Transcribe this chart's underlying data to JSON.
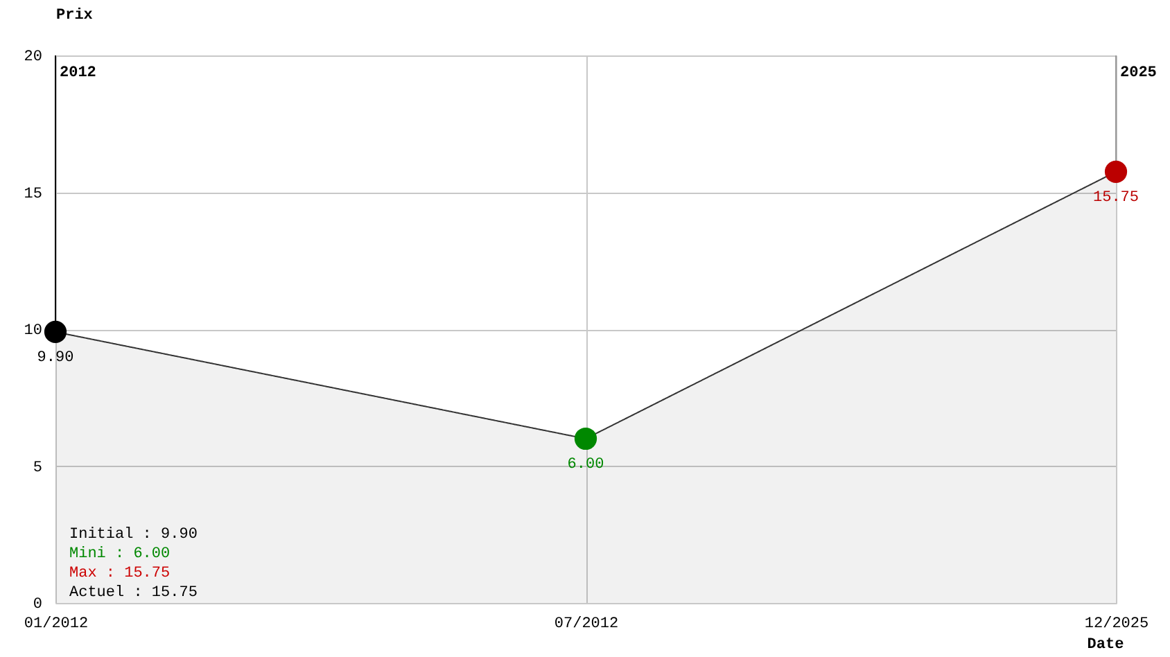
{
  "chart_data": {
    "type": "area",
    "xlabel": "Date",
    "ylabel": "Prix",
    "categories": [
      "01/2012",
      "07/2012",
      "12/2025"
    ],
    "series": [
      {
        "color": "#333333",
        "colors": [
          "#000000",
          "#008800",
          "#bb0000"
        ],
        "values": [
          9.9,
          6.0,
          15.75
        ],
        "value_labels": [
          "9.90",
          "6.00",
          "15.75"
        ]
      }
    ],
    "ylim": [
      0,
      20
    ],
    "yticks": [
      0,
      5,
      10,
      15,
      20
    ],
    "grid": true,
    "legend": false,
    "marker": "circle",
    "line_style": "solid",
    "ref_lines": [
      {
        "axis": "x",
        "value": "01/2012",
        "label": "2012",
        "color": "#000000"
      },
      {
        "axis": "x",
        "value": "12/2025",
        "label": "2025",
        "color": "#999999"
      }
    ],
    "annotations": [
      "Initial : 9.90",
      "Mini : 6.00",
      "Max : 15.75",
      "Actuel : 15.75"
    ]
  }
}
